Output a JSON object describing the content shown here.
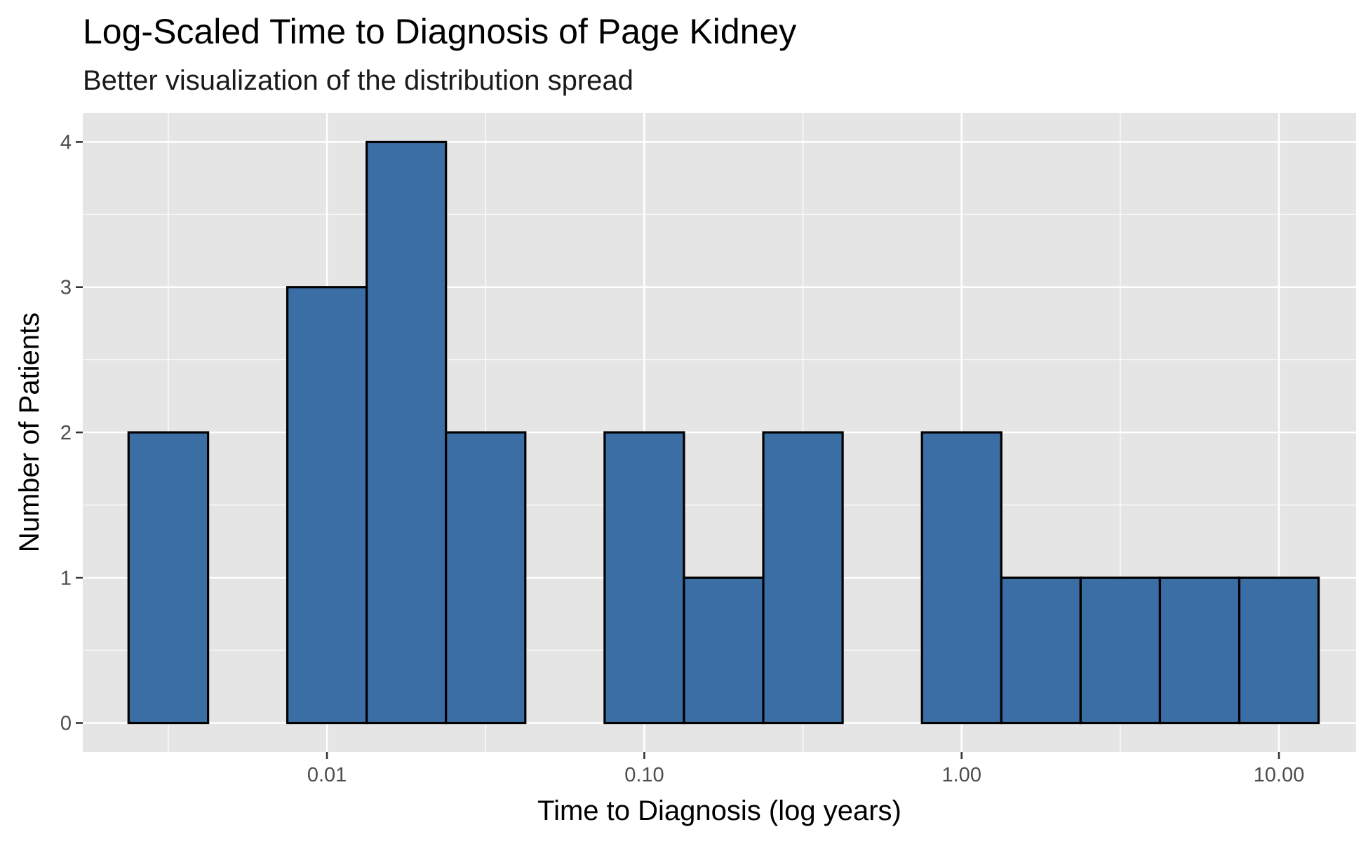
{
  "chart_data": {
    "type": "bar",
    "title": "Log-Scaled Time to Diagnosis of Page Kidney",
    "subtitle": "Better visualization of the distribution spread",
    "xlabel": "Time to Diagnosis (log years)",
    "ylabel": "Number of Patients",
    "x_scale": "log10",
    "xlim": [
      0.0017,
      17.5
    ],
    "ylim": [
      -0.2,
      4.2
    ],
    "x_ticks": [
      0.01,
      0.1,
      1,
      10
    ],
    "x_tick_labels": [
      "0.01",
      "0.10",
      "1.00",
      "10.00"
    ],
    "y_ticks": [
      0,
      1,
      2,
      3,
      4
    ],
    "y_tick_labels": [
      "0",
      "1",
      "2",
      "3",
      "4"
    ],
    "bins": [
      {
        "x_min": 0.00237,
        "x_max": 0.00422,
        "count": 2
      },
      {
        "x_min": 0.00422,
        "x_max": 0.0075,
        "count": 0
      },
      {
        "x_min": 0.0075,
        "x_max": 0.01334,
        "count": 3
      },
      {
        "x_min": 0.01334,
        "x_max": 0.02371,
        "count": 4
      },
      {
        "x_min": 0.02371,
        "x_max": 0.04217,
        "count": 2
      },
      {
        "x_min": 0.04217,
        "x_max": 0.07499,
        "count": 0
      },
      {
        "x_min": 0.07499,
        "x_max": 0.13335,
        "count": 2
      },
      {
        "x_min": 0.13335,
        "x_max": 0.23714,
        "count": 1
      },
      {
        "x_min": 0.23714,
        "x_max": 0.42169,
        "count": 2
      },
      {
        "x_min": 0.42169,
        "x_max": 0.74989,
        "count": 0
      },
      {
        "x_min": 0.74989,
        "x_max": 1.33352,
        "count": 2
      },
      {
        "x_min": 1.33352,
        "x_max": 2.37137,
        "count": 1
      },
      {
        "x_min": 2.37137,
        "x_max": 4.21697,
        "count": 1
      },
      {
        "x_min": 4.21697,
        "x_max": 7.49894,
        "count": 1
      },
      {
        "x_min": 7.49894,
        "x_max": 13.33521,
        "count": 1
      }
    ],
    "bar_fill": "#3a6ea5",
    "bar_outline": "#000000",
    "panel_background": "#e5e5e5",
    "grid_color": "#ffffff",
    "grid": true,
    "legend": "none"
  }
}
